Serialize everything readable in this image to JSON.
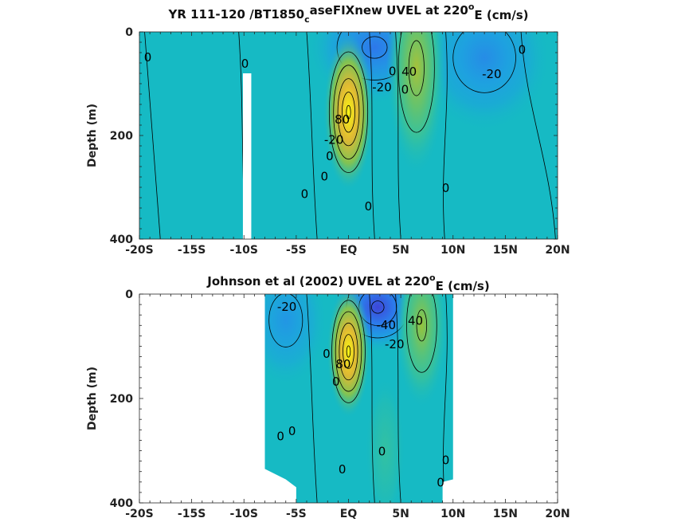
{
  "chart_data": [
    {
      "type": "contour",
      "title_parts": {
        "pre": "YR 111-120 /BT1850",
        "sub": "c",
        "mid": "aseFIXnew UVEL at 220",
        "sup": "o",
        "post": "E (cm/s)"
      },
      "xlabel": "",
      "ylabel": "Depth (m)",
      "xlim": [
        -20,
        20
      ],
      "ylim": [
        0,
        400
      ],
      "xticks": [
        -20,
        -15,
        -10,
        -5,
        0,
        5,
        10,
        15,
        20
      ],
      "xtick_labels": [
        "-20S",
        "-15S",
        "-10S",
        "-5S",
        "EQ",
        "5N",
        "10N",
        "15N",
        "20N"
      ],
      "yticks": [
        0,
        200,
        400
      ],
      "ytick_labels": [
        "0",
        "200",
        "400"
      ],
      "contour_interval": 20,
      "features": [
        {
          "name": "sec-surface-blue",
          "lat": 2.5,
          "depth": 30,
          "value": -40,
          "wlat": 4,
          "wdepth": 70
        },
        {
          "name": "north-blue",
          "lat": 13,
          "depth": 50,
          "value": -30,
          "wlat": 4,
          "wdepth": 90
        },
        {
          "name": "necc-core",
          "lat": 6.5,
          "depth": 70,
          "value": 45,
          "wlat": 1.8,
          "wdepth": 130
        },
        {
          "name": "euc-core",
          "lat": 0,
          "depth": 155,
          "value": 100,
          "wlat": 1.5,
          "wdepth": 95
        }
      ],
      "contour_labels": [
        {
          "text": "0",
          "lat": -19.2,
          "depth": 50
        },
        {
          "text": "0",
          "lat": -9.9,
          "depth": 62
        },
        {
          "text": "-20",
          "lat": 3.2,
          "depth": 108
        },
        {
          "text": "0",
          "lat": 4.2,
          "depth": 95
        },
        {
          "text": "40",
          "lat": 5.8,
          "depth": 78
        },
        {
          "text": "0",
          "lat": 5.4,
          "depth": 112
        },
        {
          "text": "-20",
          "lat": 13.7,
          "depth": 82
        },
        {
          "text": "0",
          "lat": 16.6,
          "depth": 35
        },
        {
          "text": "80",
          "lat": -0.6,
          "depth": 170
        },
        {
          "text": "-20",
          "lat": -1.4,
          "depth": 200
        },
        {
          "text": "0",
          "lat": -1.8,
          "depth": 222
        },
        {
          "text": "0",
          "lat": -2.3,
          "depth": 252
        },
        {
          "text": "0",
          "lat": -4.2,
          "depth": 314
        },
        {
          "text": "0",
          "lat": 1.9,
          "depth": 338
        },
        {
          "text": "0",
          "lat": 9.3,
          "depth": 302
        }
      ],
      "missing": [
        {
          "lat": [
            -10.1,
            -9.3
          ],
          "depth": [
            80,
            400
          ]
        }
      ]
    },
    {
      "type": "contour",
      "title_parts": {
        "pre": "Johnson et al (2002) UVEL at 220",
        "sub": "",
        "mid": "",
        "sup": "o",
        "post": "E (cm/s)"
      },
      "xlabel": "",
      "ylabel": "Depth (m)",
      "xlim": [
        -20,
        20
      ],
      "ylim": [
        0,
        400
      ],
      "xticks": [
        -20,
        -15,
        -10,
        -5,
        0,
        5,
        10,
        15,
        20
      ],
      "xtick_labels": [
        "-20S",
        "-15S",
        "-10S",
        "-5S",
        "EQ",
        "5N",
        "10N",
        "15N",
        "20N"
      ],
      "yticks": [
        0,
        200,
        400
      ],
      "ytick_labels": [
        "0",
        "200",
        "400"
      ],
      "contour_interval": 20,
      "data_extent": [
        [
          -8,
          0
        ],
        [
          10,
          0
        ],
        [
          10,
          355
        ],
        [
          9,
          360
        ],
        [
          9,
          400
        ],
        [
          -5,
          400
        ],
        [
          -5,
          370
        ],
        [
          -6,
          355
        ],
        [
          -8,
          335
        ]
      ],
      "features": [
        {
          "name": "west-blue",
          "lat": -6,
          "depth": 50,
          "value": -25,
          "wlat": 2.5,
          "wdepth": 80
        },
        {
          "name": "sec-surface-blue",
          "lat": 2.8,
          "depth": 25,
          "value": -60,
          "wlat": 2.8,
          "wdepth": 55
        },
        {
          "name": "necc-core",
          "lat": 7,
          "depth": 60,
          "value": 40,
          "wlat": 1.6,
          "wdepth": 100
        },
        {
          "name": "deep-green",
          "lat": 3.5,
          "depth": 300,
          "value": 15,
          "wlat": 1.2,
          "wdepth": 90
        },
        {
          "name": "euc-core",
          "lat": 0,
          "depth": 110,
          "value": 100,
          "wlat": 1.3,
          "wdepth": 80
        }
      ],
      "contour_labels": [
        {
          "text": "-20",
          "lat": -5.9,
          "depth": 25
        },
        {
          "text": "-40",
          "lat": 3.6,
          "depth": 60
        },
        {
          "text": "-20",
          "lat": 4.4,
          "depth": 88
        },
        {
          "text": "40",
          "lat": 6.4,
          "depth": 52
        },
        {
          "text": "0",
          "lat": -2.1,
          "depth": 115
        },
        {
          "text": "80",
          "lat": -0.5,
          "depth": 135
        },
        {
          "text": "0",
          "lat": -1.2,
          "depth": 150
        },
        {
          "text": "0",
          "lat": -6.5,
          "depth": 273
        },
        {
          "text": "0",
          "lat": -5.4,
          "depth": 263
        },
        {
          "text": "0",
          "lat": 3.2,
          "depth": 302
        },
        {
          "text": "0",
          "lat": -0.6,
          "depth": 337
        },
        {
          "text": "0",
          "lat": 9.3,
          "depth": 319
        },
        {
          "text": "0",
          "lat": 8.8,
          "depth": 362
        }
      ]
    }
  ]
}
